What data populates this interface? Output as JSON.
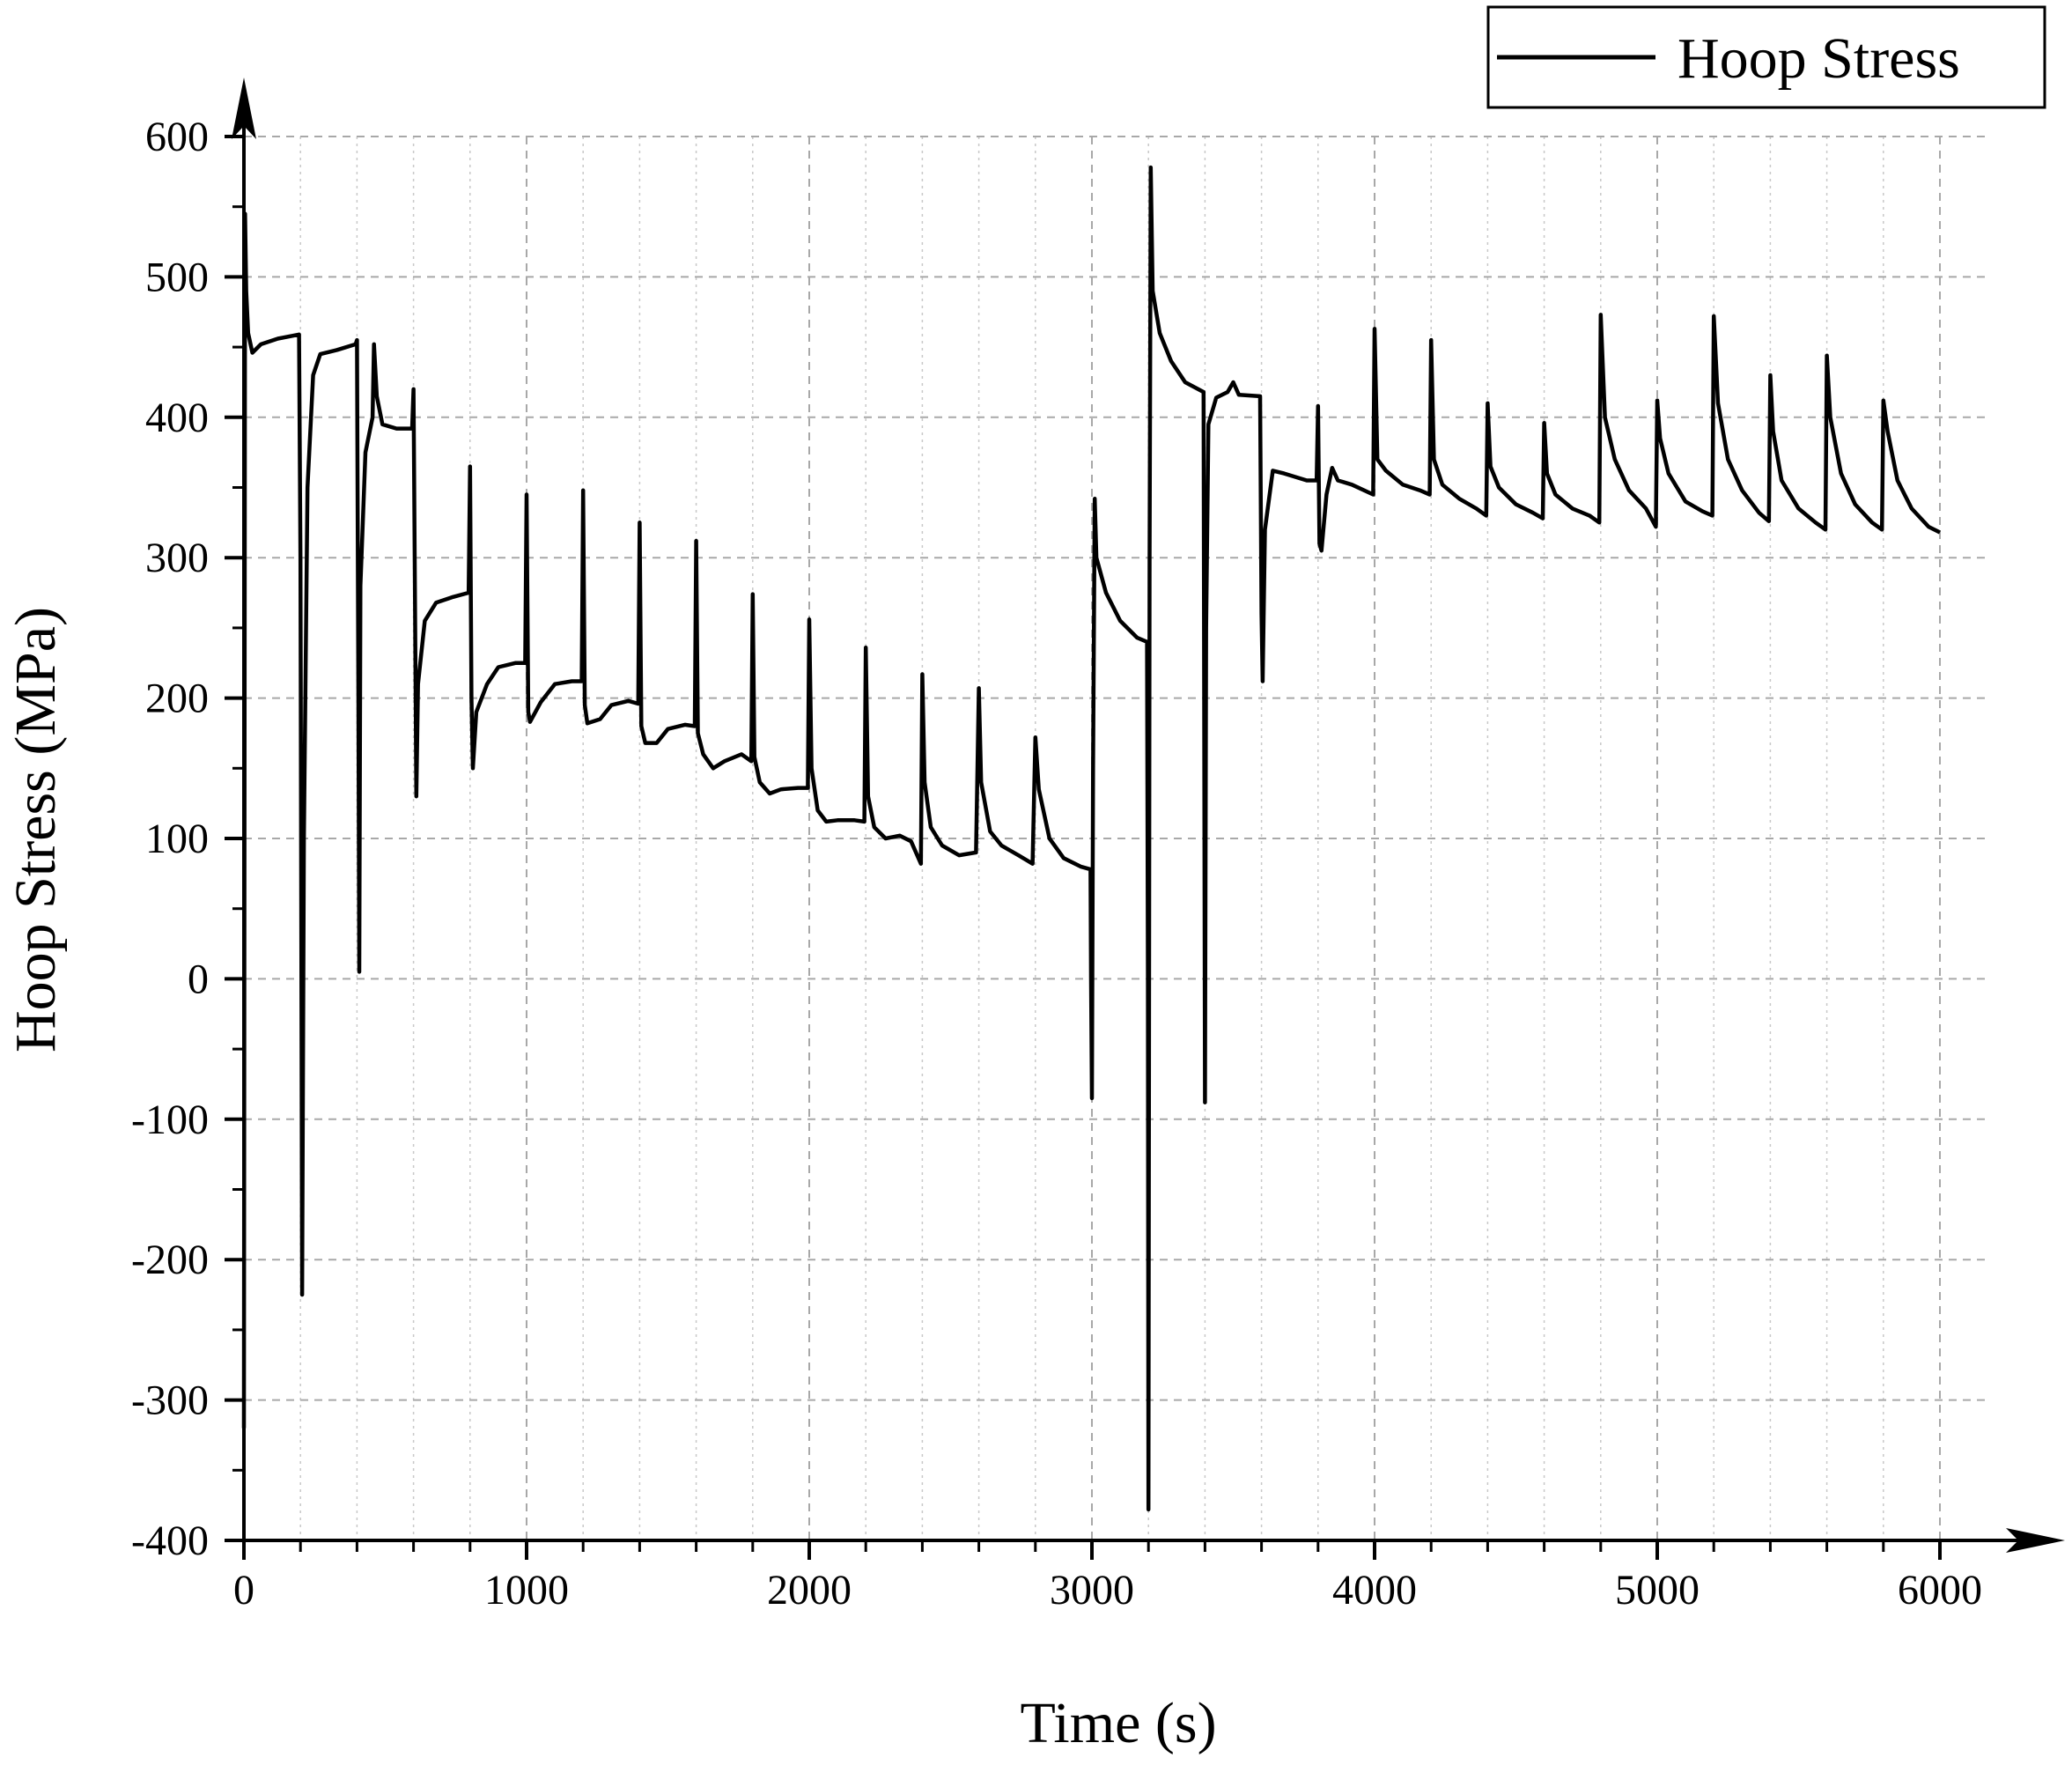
{
  "chart_data": {
    "type": "line",
    "xlabel": "Time (s)",
    "ylabel": "Hoop Stress (MPa)",
    "xlim": [
      0,
      6200
    ],
    "ylim": [
      -400,
      600
    ],
    "x_ticks": [
      0,
      1000,
      2000,
      3000,
      4000,
      5000,
      6000
    ],
    "y_ticks": [
      -400,
      -300,
      -200,
      -100,
      0,
      100,
      200,
      300,
      400,
      500,
      600
    ],
    "grid": true,
    "legend_position": "top-right",
    "series": [
      {
        "name": "Hoop Stress",
        "color": "#000000",
        "points": [
          [
            0,
            -320
          ],
          [
            4,
            545
          ],
          [
            8,
            490
          ],
          [
            15,
            460
          ],
          [
            30,
            446
          ],
          [
            60,
            452
          ],
          [
            120,
            456
          ],
          [
            195,
            459
          ],
          [
            200,
            300
          ],
          [
            206,
            -225
          ],
          [
            212,
            100
          ],
          [
            225,
            350
          ],
          [
            245,
            430
          ],
          [
            270,
            445
          ],
          [
            330,
            448
          ],
          [
            395,
            452
          ],
          [
            400,
            455
          ],
          [
            405,
            200
          ],
          [
            408,
            5
          ],
          [
            412,
            280
          ],
          [
            430,
            375
          ],
          [
            455,
            400
          ],
          [
            460,
            452
          ],
          [
            470,
            415
          ],
          [
            490,
            395
          ],
          [
            540,
            392
          ],
          [
            595,
            392
          ],
          [
            600,
            420
          ],
          [
            606,
            250
          ],
          [
            610,
            130
          ],
          [
            616,
            210
          ],
          [
            640,
            255
          ],
          [
            680,
            268
          ],
          [
            740,
            272
          ],
          [
            795,
            275
          ],
          [
            800,
            365
          ],
          [
            805,
            200
          ],
          [
            810,
            150
          ],
          [
            822,
            190
          ],
          [
            860,
            210
          ],
          [
            900,
            222
          ],
          [
            960,
            225
          ],
          [
            995,
            225
          ],
          [
            1000,
            345
          ],
          [
            1006,
            190
          ],
          [
            1012,
            183
          ],
          [
            1050,
            197
          ],
          [
            1100,
            210
          ],
          [
            1160,
            212
          ],
          [
            1195,
            212
          ],
          [
            1200,
            348
          ],
          [
            1206,
            195
          ],
          [
            1215,
            182
          ],
          [
            1260,
            185
          ],
          [
            1300,
            195
          ],
          [
            1360,
            198
          ],
          [
            1395,
            196
          ],
          [
            1400,
            325
          ],
          [
            1406,
            180
          ],
          [
            1420,
            168
          ],
          [
            1460,
            168
          ],
          [
            1500,
            178
          ],
          [
            1560,
            181
          ],
          [
            1595,
            180
          ],
          [
            1600,
            312
          ],
          [
            1606,
            175
          ],
          [
            1625,
            160
          ],
          [
            1660,
            150
          ],
          [
            1700,
            155
          ],
          [
            1760,
            160
          ],
          [
            1795,
            155
          ],
          [
            1800,
            274
          ],
          [
            1806,
            158
          ],
          [
            1825,
            140
          ],
          [
            1860,
            132
          ],
          [
            1900,
            135
          ],
          [
            1960,
            136
          ],
          [
            1995,
            136
          ],
          [
            2000,
            256
          ],
          [
            2008,
            150
          ],
          [
            2030,
            120
          ],
          [
            2060,
            112
          ],
          [
            2100,
            113
          ],
          [
            2160,
            113
          ],
          [
            2195,
            112
          ],
          [
            2200,
            236
          ],
          [
            2208,
            130
          ],
          [
            2230,
            108
          ],
          [
            2270,
            100
          ],
          [
            2320,
            102
          ],
          [
            2360,
            98
          ],
          [
            2395,
            82
          ],
          [
            2400,
            217
          ],
          [
            2408,
            140
          ],
          [
            2430,
            108
          ],
          [
            2470,
            95
          ],
          [
            2530,
            88
          ],
          [
            2590,
            90
          ],
          [
            2600,
            207
          ],
          [
            2608,
            140
          ],
          [
            2640,
            105
          ],
          [
            2680,
            95
          ],
          [
            2740,
            88
          ],
          [
            2790,
            82
          ],
          [
            2800,
            172
          ],
          [
            2812,
            135
          ],
          [
            2850,
            100
          ],
          [
            2900,
            86
          ],
          [
            2960,
            80
          ],
          [
            2995,
            78
          ],
          [
            2997,
            0
          ],
          [
            3000,
            -85
          ],
          [
            3004,
            150
          ],
          [
            3010,
            342
          ],
          [
            3016,
            300
          ],
          [
            3050,
            275
          ],
          [
            3100,
            255
          ],
          [
            3160,
            243
          ],
          [
            3195,
            240
          ],
          [
            3198,
            0
          ],
          [
            3200,
            -378
          ],
          [
            3204,
            300
          ],
          [
            3208,
            578
          ],
          [
            3215,
            490
          ],
          [
            3240,
            460
          ],
          [
            3280,
            440
          ],
          [
            3330,
            425
          ],
          [
            3395,
            418
          ],
          [
            3398,
            100
          ],
          [
            3400,
            -88
          ],
          [
            3404,
            250
          ],
          [
            3412,
            395
          ],
          [
            3440,
            414
          ],
          [
            3480,
            418
          ],
          [
            3500,
            425
          ],
          [
            3520,
            416
          ],
          [
            3595,
            415
          ],
          [
            3600,
            260
          ],
          [
            3604,
            212
          ],
          [
            3612,
            320
          ],
          [
            3640,
            362
          ],
          [
            3680,
            360
          ],
          [
            3760,
            355
          ],
          [
            3795,
            355
          ],
          [
            3800,
            408
          ],
          [
            3805,
            310
          ],
          [
            3812,
            305
          ],
          [
            3830,
            345
          ],
          [
            3850,
            364
          ],
          [
            3870,
            355
          ],
          [
            3920,
            352
          ],
          [
            3995,
            345
          ],
          [
            4000,
            463
          ],
          [
            4010,
            370
          ],
          [
            4040,
            362
          ],
          [
            4100,
            352
          ],
          [
            4160,
            348
          ],
          [
            4195,
            345
          ],
          [
            4200,
            455
          ],
          [
            4210,
            370
          ],
          [
            4240,
            352
          ],
          [
            4300,
            342
          ],
          [
            4360,
            335
          ],
          [
            4395,
            330
          ],
          [
            4400,
            410
          ],
          [
            4410,
            365
          ],
          [
            4440,
            350
          ],
          [
            4500,
            338
          ],
          [
            4560,
            332
          ],
          [
            4595,
            328
          ],
          [
            4600,
            396
          ],
          [
            4610,
            360
          ],
          [
            4640,
            345
          ],
          [
            4700,
            335
          ],
          [
            4760,
            330
          ],
          [
            4795,
            325
          ],
          [
            4800,
            473
          ],
          [
            4815,
            400
          ],
          [
            4850,
            370
          ],
          [
            4900,
            348
          ],
          [
            4960,
            335
          ],
          [
            4995,
            322
          ],
          [
            5000,
            412
          ],
          [
            5010,
            385
          ],
          [
            5040,
            360
          ],
          [
            5100,
            340
          ],
          [
            5160,
            333
          ],
          [
            5195,
            330
          ],
          [
            5200,
            472
          ],
          [
            5215,
            410
          ],
          [
            5250,
            370
          ],
          [
            5300,
            348
          ],
          [
            5360,
            332
          ],
          [
            5395,
            326
          ],
          [
            5400,
            430
          ],
          [
            5410,
            390
          ],
          [
            5440,
            355
          ],
          [
            5500,
            335
          ],
          [
            5560,
            325
          ],
          [
            5595,
            320
          ],
          [
            5600,
            444
          ],
          [
            5612,
            400
          ],
          [
            5650,
            360
          ],
          [
            5700,
            338
          ],
          [
            5760,
            325
          ],
          [
            5795,
            320
          ],
          [
            5800,
            412
          ],
          [
            5815,
            390
          ],
          [
            5850,
            355
          ],
          [
            5900,
            335
          ],
          [
            5960,
            322
          ],
          [
            6000,
            318
          ]
        ]
      }
    ]
  }
}
